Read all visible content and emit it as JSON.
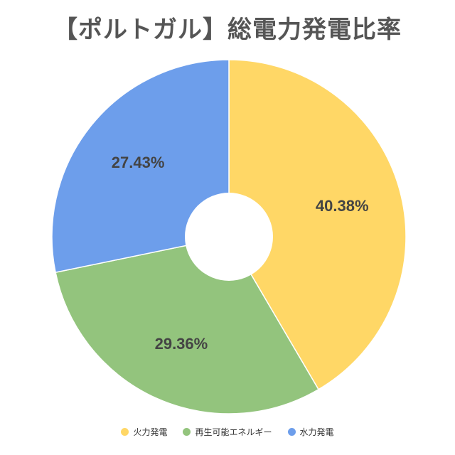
{
  "chart_data": {
    "type": "pie",
    "variant": "donut",
    "title": "【ポルトガル】総電力発電比率",
    "start_angle_deg": 0,
    "direction": "clockwise",
    "slices": [
      {
        "name": "火力発電",
        "value": 40.38,
        "label": "40.38%",
        "color": "#FFD766"
      },
      {
        "name": "再生可能エネルギー",
        "value": 29.36,
        "label": "29.36%",
        "color": "#93C47D"
      },
      {
        "name": "水力発電",
        "value": 27.43,
        "label": "27.43%",
        "color": "#6D9EEB"
      }
    ],
    "legend_position": "bottom"
  }
}
